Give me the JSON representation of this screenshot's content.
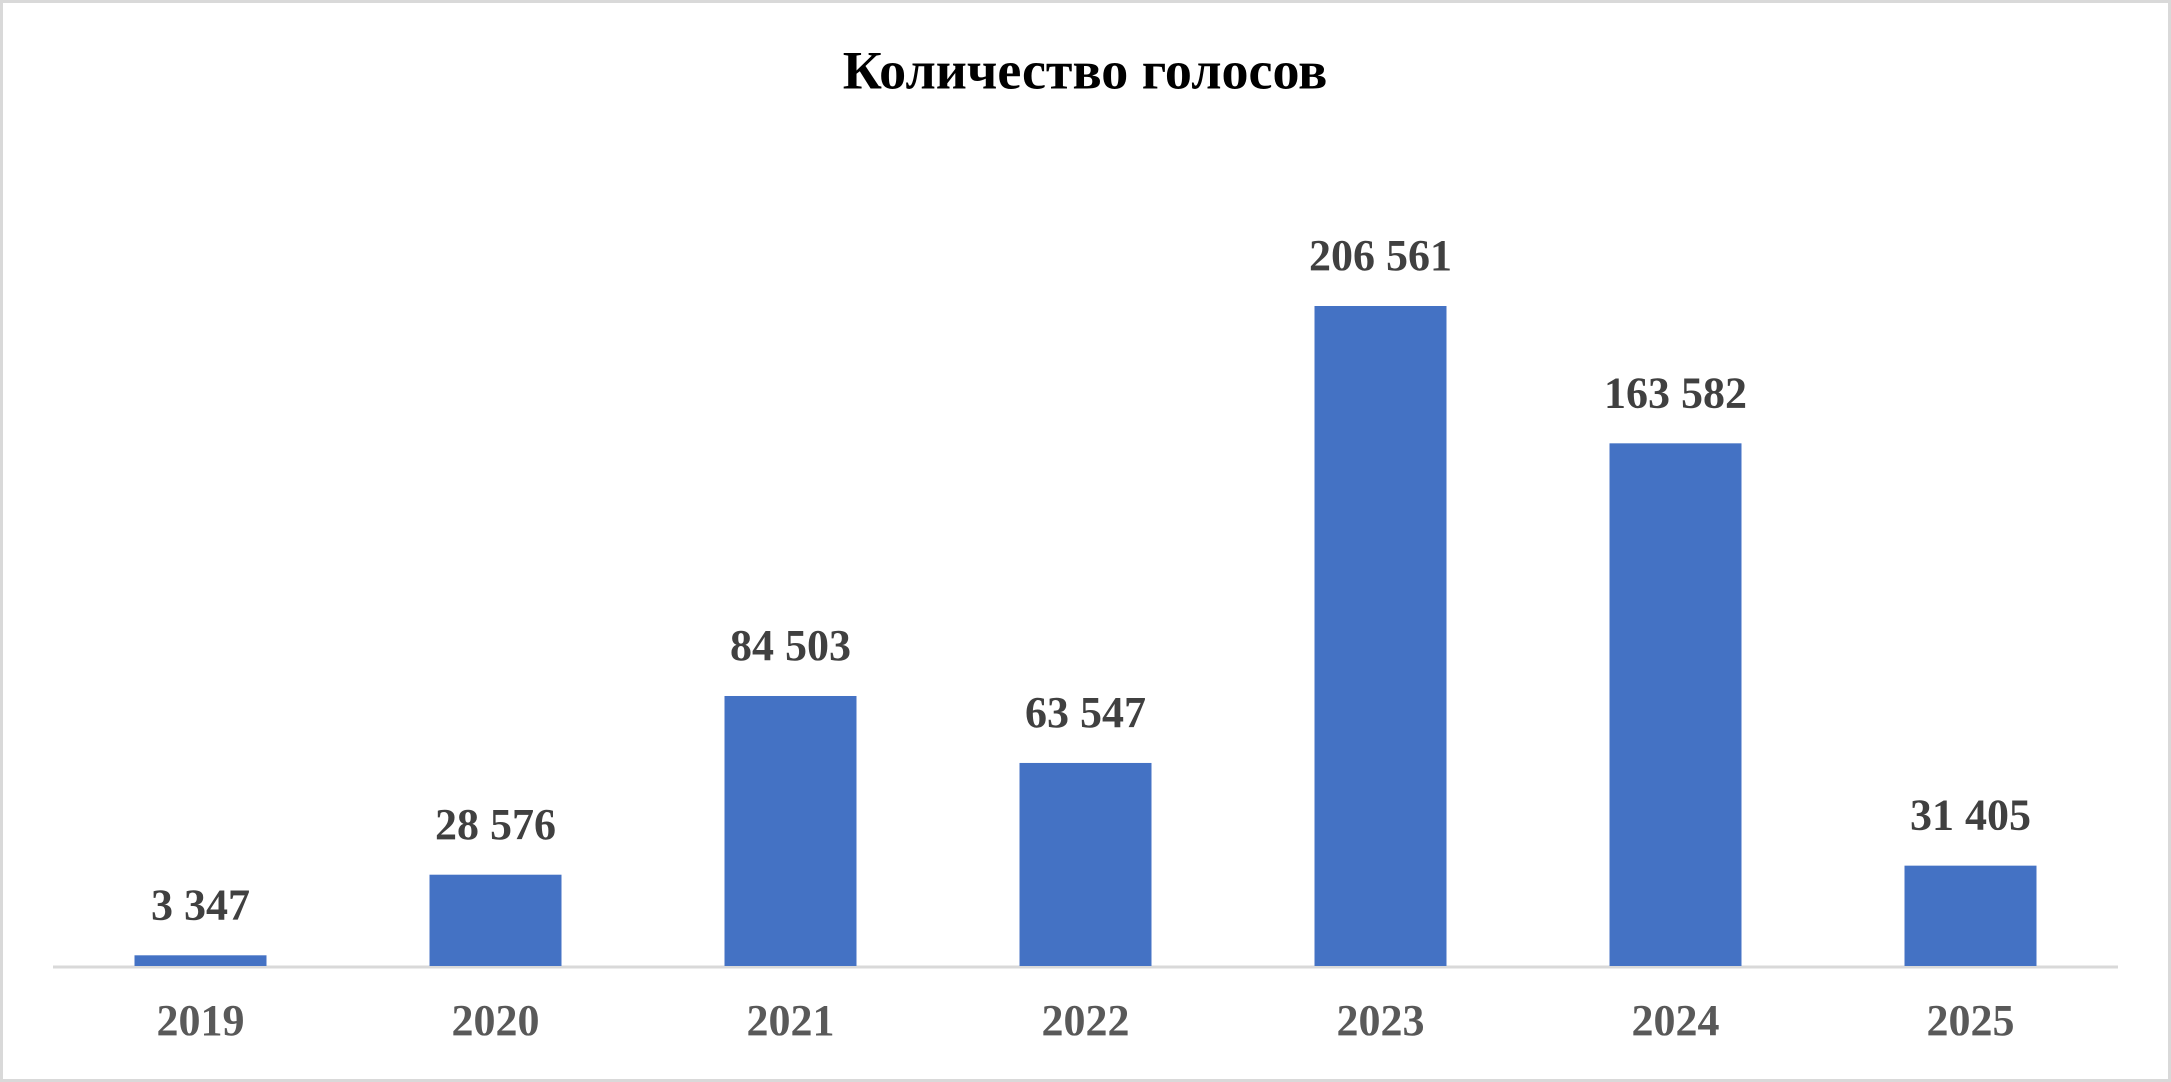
{
  "chart_data": {
    "type": "bar",
    "title": "Количество голосов",
    "categories": [
      "2019",
      "2020",
      "2021",
      "2022",
      "2023",
      "2024",
      "2025"
    ],
    "values": [
      3347,
      28576,
      84503,
      63547,
      206561,
      163582,
      31405
    ],
    "value_labels": [
      "3 347",
      "28 576",
      "84 503",
      "63 547",
      "206 561",
      "163 582",
      "31 405"
    ],
    "color": "#4472c4"
  }
}
